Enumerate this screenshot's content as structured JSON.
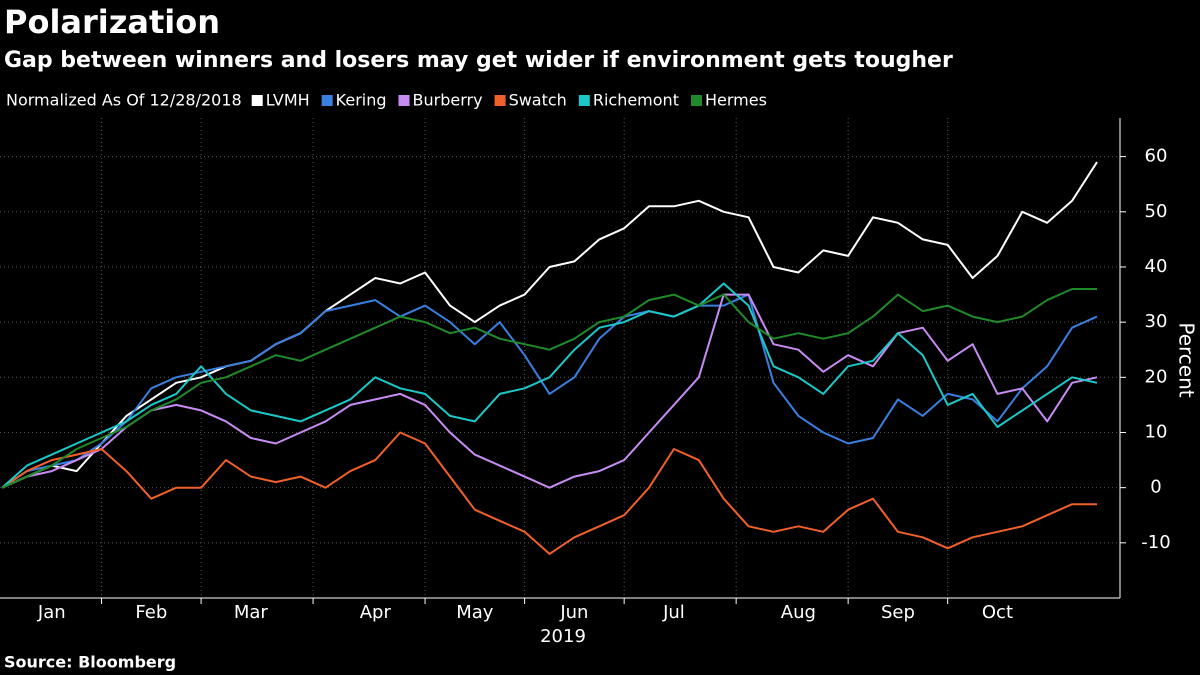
{
  "chart_data": {
    "type": "line",
    "title": "Polarization",
    "subtitle": "Gap between winners and losers may get wider if environment gets tougher",
    "legend_title": "Normalized As Of 12/28/2018",
    "ylabel": "Percent",
    "xlabel": "2019",
    "source": "Source: Bloomberg",
    "categories": [
      null,
      null,
      "Jan",
      null,
      null,
      null,
      "Feb",
      null,
      null,
      null,
      "Mar",
      null,
      null,
      null,
      null,
      "Apr",
      null,
      null,
      null,
      "May",
      null,
      null,
      null,
      "Jun",
      null,
      null,
      null,
      "Jul",
      null,
      null,
      null,
      null,
      "Aug",
      null,
      null,
      null,
      "Sep",
      null,
      null,
      null,
      "Oct",
      null,
      null,
      null,
      null
    ],
    "series": [
      {
        "name": "LVMH",
        "color": "#ffffff",
        "values": [
          0,
          2,
          4,
          3,
          8,
          13,
          16,
          19,
          20,
          22,
          23,
          26,
          28,
          32,
          35,
          38,
          37,
          39,
          33,
          30,
          33,
          35,
          40,
          41,
          45,
          47,
          51,
          51,
          52,
          50,
          49,
          40,
          39,
          43,
          42,
          49,
          48,
          45,
          44,
          38,
          42,
          50,
          48,
          52,
          59
        ]
      },
      {
        "name": "Kering",
        "color": "#3a7fe0",
        "values": [
          0,
          3,
          4,
          5,
          8,
          12,
          18,
          20,
          21,
          22,
          23,
          26,
          28,
          32,
          33,
          34,
          31,
          33,
          30,
          26,
          30,
          24,
          17,
          20,
          27,
          31,
          32,
          31,
          33,
          33,
          35,
          19,
          13,
          10,
          8,
          9,
          16,
          13,
          17,
          16,
          12,
          18,
          22,
          29,
          31
        ]
      },
      {
        "name": "Burberry",
        "color": "#c78cf2",
        "values": [
          0,
          2,
          3,
          5,
          7,
          11,
          14,
          15,
          14,
          12,
          9,
          8,
          10,
          12,
          15,
          16,
          17,
          15,
          10,
          6,
          4,
          2,
          0,
          2,
          3,
          5,
          10,
          15,
          20,
          35,
          35,
          26,
          25,
          21,
          24,
          22,
          28,
          29,
          23,
          26,
          17,
          18,
          12,
          19,
          20
        ]
      },
      {
        "name": "Swatch",
        "color": "#f0602a",
        "values": [
          0,
          3,
          5,
          6,
          7,
          3,
          -2,
          0,
          0,
          5,
          2,
          1,
          2,
          0,
          3,
          5,
          10,
          8,
          2,
          -4,
          -6,
          -8,
          -12,
          -9,
          -7,
          -5,
          0,
          7,
          5,
          -2,
          -7,
          -8,
          -7,
          -8,
          -4,
          -2,
          -8,
          -9,
          -11,
          -9,
          -8,
          -7,
          -5,
          -3,
          -3
        ]
      },
      {
        "name": "Richemont",
        "color": "#1cc7c7",
        "values": [
          0,
          4,
          6,
          8,
          10,
          12,
          15,
          17,
          22,
          17,
          14,
          13,
          12,
          14,
          16,
          20,
          18,
          17,
          13,
          12,
          17,
          18,
          20,
          25,
          29,
          30,
          32,
          31,
          33,
          37,
          33,
          22,
          20,
          17,
          22,
          23,
          28,
          24,
          15,
          17,
          11,
          14,
          17,
          20,
          19
        ]
      },
      {
        "name": "Hermes",
        "color": "#1f8a2a",
        "values": [
          0,
          2,
          4,
          7,
          9,
          11,
          14,
          16,
          19,
          20,
          22,
          24,
          23,
          25,
          27,
          29,
          31,
          30,
          28,
          29,
          27,
          26,
          25,
          27,
          30,
          31,
          34,
          35,
          33,
          35,
          30,
          27,
          28,
          27,
          28,
          31,
          35,
          32,
          33,
          31,
          30,
          31,
          34,
          36,
          36
        ]
      }
    ],
    "ylim": [
      -20,
      67
    ],
    "yticks": [
      -10,
      0,
      10,
      20,
      30,
      40,
      50,
      60
    ],
    "grid": true
  }
}
